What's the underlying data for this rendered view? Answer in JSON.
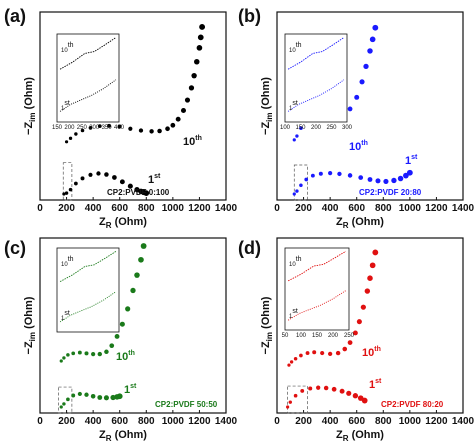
{
  "chart_data": [
    {
      "type": "scatter",
      "panel": "(a)",
      "color": "#000000",
      "xlabel": "Z",
      "xlabel_sub": "R",
      "xlabel_unit": "(Ohm)",
      "ylabel": "−Z",
      "ylabel_sub": "im",
      "ylabel_unit": "(Ohm)",
      "xlim": [
        0,
        1400
      ],
      "xticks": [
        "0",
        "200",
        "400",
        "600",
        "800",
        "1000",
        "1200",
        "1400"
      ],
      "composition": "CP2:PVDF 0:100",
      "series": [
        {
          "name": "1st",
          "label_base": "1",
          "label_sup": "st",
          "x": [
            180,
            200,
            230,
            270,
            320,
            380,
            440,
            500,
            560,
            620,
            680,
            730,
            760,
            780,
            800
          ],
          "y": [
            0,
            5,
            25,
            60,
            90,
            110,
            118,
            112,
            95,
            70,
            45,
            25,
            15,
            10,
            5
          ]
        },
        {
          "name": "10th",
          "label_base": "10",
          "label_sup": "th",
          "x": [
            200,
            230,
            270,
            320,
            380,
            450,
            520,
            600,
            680,
            760,
            840,
            900,
            960,
            1000,
            1040,
            1080,
            1110,
            1140,
            1160,
            1180,
            1200,
            1210,
            1220
          ],
          "y": [
            300,
            320,
            345,
            365,
            380,
            390,
            392,
            388,
            375,
            365,
            360,
            362,
            375,
            395,
            430,
            480,
            540,
            610,
            680,
            760,
            840,
            900,
            960
          ]
        }
      ],
      "inset": {
        "xlim": [
          150,
          400
        ],
        "xticks": [
          "150",
          "200",
          "250",
          "300",
          "350",
          "400"
        ],
        "labels": [
          {
            "base": "10",
            "sup": "th"
          },
          {
            "base": "1",
            "sup": "st"
          }
        ]
      }
    },
    {
      "type": "scatter",
      "panel": "(b)",
      "color": "#1a1aff",
      "xlabel": "Z",
      "xlabel_sub": "R",
      "xlabel_unit": "(Ohm)",
      "ylabel": "−Z",
      "ylabel_sub": "im",
      "ylabel_unit": "(Ohm)",
      "xlim": [
        0,
        1400
      ],
      "xticks": [
        "0",
        "200",
        "400",
        "600",
        "800",
        "1000",
        "1200",
        "1400"
      ],
      "composition": "CP2:PVDF 20:80",
      "series": [
        {
          "name": "1st",
          "label_base": "1",
          "label_sup": "st",
          "x": [
            130,
            150,
            180,
            220,
            270,
            330,
            400,
            470,
            550,
            630,
            700,
            760,
            820,
            880,
            930,
            970,
            1000
          ],
          "y": [
            0,
            15,
            45,
            75,
            95,
            105,
            108,
            104,
            96,
            85,
            75,
            68,
            65,
            70,
            80,
            95,
            110
          ]
        },
        {
          "name": "10th",
          "label_base": "10",
          "label_sup": "th",
          "x": [
            130,
            150,
            180,
            220,
            270,
            320,
            380,
            440,
            500,
            550,
            600,
            640,
            670,
            700,
            720,
            740
          ],
          "y": [
            280,
            300,
            340,
            380,
            410,
            420,
            410,
            400,
            400,
            440,
            500,
            580,
            660,
            740,
            800,
            860
          ]
        }
      ],
      "inset": {
        "xlim": [
          100,
          300
        ],
        "xticks": [
          "100",
          "150",
          "200",
          "250",
          "300"
        ],
        "labels": [
          {
            "base": "10",
            "sup": "th"
          },
          {
            "base": "1",
            "sup": "st"
          }
        ]
      }
    },
    {
      "type": "scatter",
      "panel": "(c)",
      "color": "#1a7a1a",
      "xlabel": "Z",
      "xlabel_sub": "R",
      "xlabel_unit": "(Ohm)",
      "ylabel": "−Z",
      "ylabel_sub": "im",
      "ylabel_unit": "(Ohm)",
      "xlim": [
        0,
        1400
      ],
      "xticks": [
        "0",
        "200",
        "400",
        "600",
        "800",
        "1000",
        "1200",
        "1400"
      ],
      "composition": "CP2:PVDF 50:50",
      "series": [
        {
          "name": "1st",
          "label_base": "1",
          "label_sup": "st",
          "x": [
            160,
            180,
            210,
            250,
            300,
            350,
            400,
            450,
            500,
            550,
            580,
            600
          ],
          "y": [
            0,
            20,
            50,
            75,
            85,
            80,
            70,
            62,
            60,
            62,
            66,
            70
          ]
        },
        {
          "name": "10th",
          "label_base": "10",
          "label_sup": "th",
          "x": [
            160,
            180,
            210,
            250,
            300,
            350,
            400,
            450,
            500,
            540,
            580,
            620,
            660,
            700,
            730,
            760,
            780
          ],
          "y": [
            300,
            320,
            340,
            350,
            355,
            350,
            345,
            345,
            360,
            400,
            460,
            540,
            640,
            760,
            860,
            960,
            1050
          ]
        }
      ],
      "inset": {
        "labels": [
          {
            "base": "10",
            "sup": "th"
          },
          {
            "base": "1",
            "sup": "st"
          }
        ]
      }
    },
    {
      "type": "scatter",
      "panel": "(d)",
      "color": "#e01010",
      "xlabel": "Z",
      "xlabel_sub": "R",
      "xlabel_unit": "(Ohm)",
      "ylabel": "−Z",
      "ylabel_sub": "im",
      "ylabel_unit": "(Ohm)",
      "xlim": [
        0,
        1400
      ],
      "xticks": [
        "0",
        "200",
        "400",
        "600",
        "800",
        "1000",
        "1200",
        "1400"
      ],
      "composition": "CP2:PVDF 80:20",
      "series": [
        {
          "name": "1st",
          "label_base": "1",
          "label_sup": "st",
          "x": [
            80,
            100,
            140,
            190,
            250,
            310,
            370,
            430,
            490,
            540,
            590,
            630,
            660
          ],
          "y": [
            0,
            30,
            70,
            100,
            115,
            120,
            118,
            110,
            98,
            85,
            70,
            55,
            40
          ]
        },
        {
          "name": "10th",
          "label_base": "10",
          "label_sup": "th",
          "x": [
            90,
            110,
            140,
            180,
            230,
            280,
            340,
            400,
            460,
            510,
            550,
            590,
            620,
            650,
            680,
            700,
            720,
            740
          ],
          "y": [
            260,
            280,
            300,
            320,
            335,
            340,
            335,
            330,
            335,
            360,
            400,
            460,
            530,
            620,
            720,
            800,
            880,
            960
          ]
        }
      ],
      "inset": {
        "xlim": [
          50,
          250
        ],
        "xticks": [
          "50",
          "100",
          "150",
          "200",
          "250"
        ],
        "labels": [
          {
            "base": "10",
            "sup": "th"
          },
          {
            "base": "1",
            "sup": "st"
          }
        ]
      }
    }
  ]
}
